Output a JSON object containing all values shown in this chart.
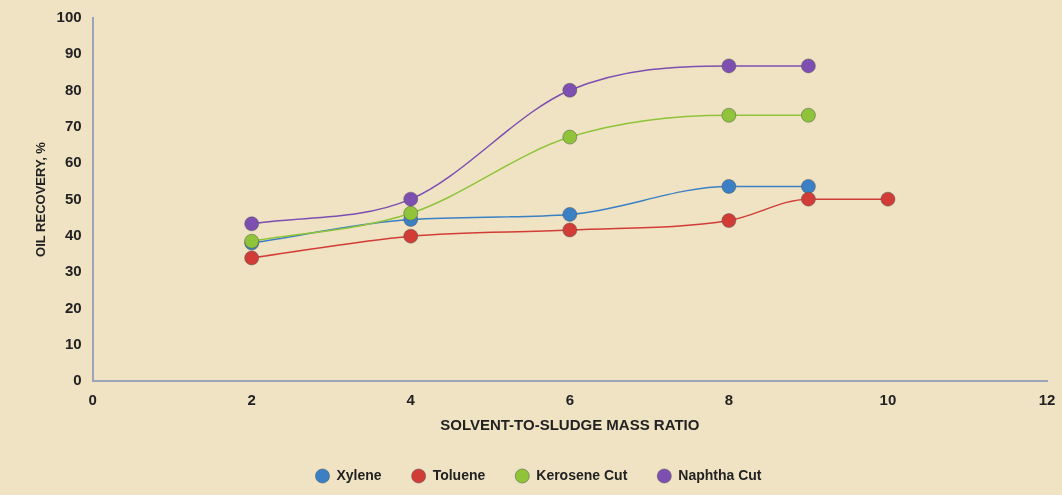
{
  "chart_data": {
    "type": "line",
    "xlabel": "SOLVENT-TO-SLUDGE MASS RATIO",
    "ylabel": "OIL RECOVERY, %",
    "xlim": [
      0,
      12
    ],
    "xticks": [
      0,
      2,
      4,
      6,
      8,
      10,
      12
    ],
    "ylim": [
      0,
      100
    ],
    "yticks": [
      0,
      10,
      20,
      30,
      40,
      50,
      60,
      70,
      80,
      90,
      100
    ],
    "grid": false,
    "legend": "bottom",
    "marker": "circle",
    "line_style": "solid",
    "series": [
      {
        "name": "Xylene",
        "color": "#3b7fc4",
        "x": [
          2,
          4,
          6,
          8,
          9
        ],
        "values": [
          38,
          44.5,
          45.9,
          53.6,
          53.6
        ]
      },
      {
        "name": "Toluene",
        "color": "#d23c36",
        "x": [
          2,
          4,
          6,
          8,
          9,
          10
        ],
        "values": [
          33.9,
          39.9,
          41.6,
          44.2,
          50.1,
          50.1
        ]
      },
      {
        "name": "Kerosene Cut",
        "color": "#8fc43a",
        "x": [
          2,
          4,
          6,
          8,
          9
        ],
        "values": [
          38.5,
          46.2,
          67.2,
          73.2,
          73.2
        ]
      },
      {
        "name": "Naphtha Cut",
        "color": "#7d4fb0",
        "x": [
          2,
          4,
          6,
          8,
          9
        ],
        "values": [
          43.3,
          50.1,
          80.1,
          86.8,
          86.8
        ]
      }
    ]
  }
}
